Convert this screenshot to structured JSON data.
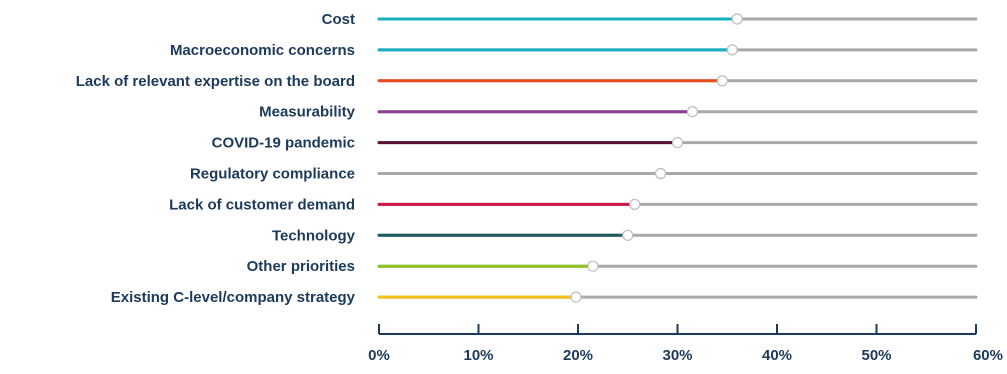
{
  "chart_data": {
    "type": "bar",
    "categories": [
      "Cost",
      "Macroeconomic concerns",
      "Lack of relevant expertise on the board",
      "Measurability",
      "COVID-19 pandemic",
      "Regulatory compliance",
      "Lack of customer demand",
      "Technology",
      "Other priorities",
      "Existing C-level/company strategy"
    ],
    "values": [
      36,
      35.5,
      34.5,
      31.5,
      30,
      28.3,
      25.7,
      25,
      21.5,
      19.8
    ],
    "colors": [
      "#1aaec4",
      "#1aaec4",
      "#e84a1c",
      "#8b3f8e",
      "#5a1035",
      "#a9a9a9",
      "#cc1845",
      "#1d5a63",
      "#8cc21f",
      "#f2c21a"
    ],
    "track_color": "#a9a9a9",
    "marker_color": "#ffffff",
    "xlim": [
      0,
      60
    ],
    "x_ticks": [
      "0%",
      "10%",
      "20%",
      "30%",
      "40%",
      "50%",
      "60%"
    ],
    "x_tick_values": [
      0,
      10,
      20,
      30,
      40,
      50,
      60
    ],
    "unit": "%",
    "grid": false,
    "legend": "none",
    "title": "",
    "xlabel": "",
    "ylabel": ""
  }
}
